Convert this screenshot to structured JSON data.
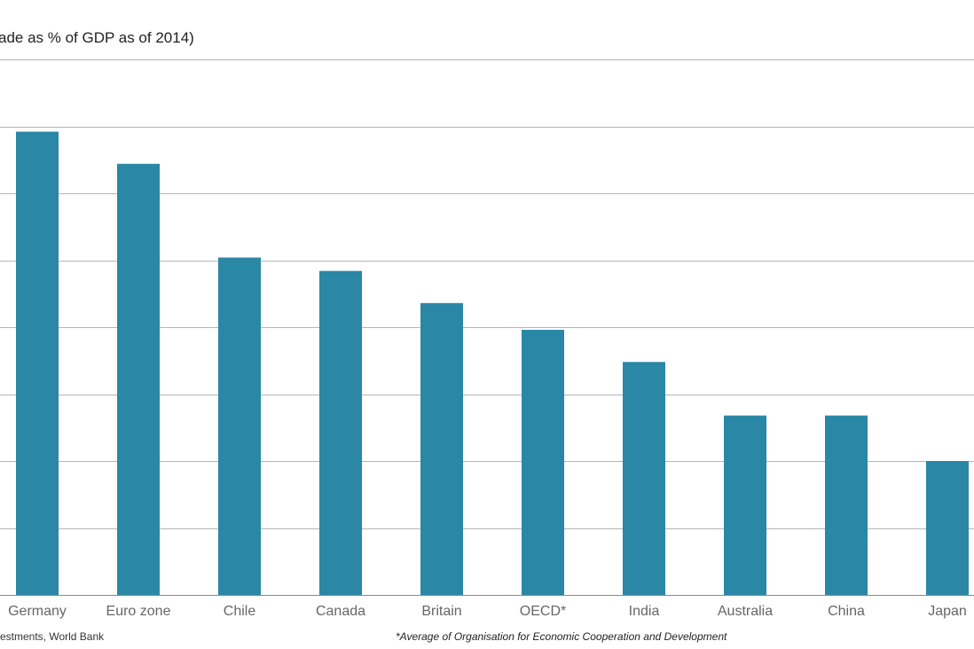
{
  "chart_data": {
    "type": "bar",
    "title": "ade as % of GDP as of 2014)",
    "categories": [
      "Germany",
      "Euro zone",
      "Chile",
      "Canada",
      "Britain",
      "OECD*",
      "India",
      "Australia",
      "China",
      "Japan"
    ],
    "values": [
      86.5,
      80.5,
      63.0,
      60.5,
      54.5,
      49.5,
      43.5,
      33.5,
      33.5,
      25.0
    ],
    "ylim": [
      0,
      100
    ],
    "grid_step": 12.5,
    "grid": true,
    "color": "#2a87a6",
    "source": "estments, World Bank",
    "footnote": "*Average of Organisation for Economic Cooperation and Development"
  }
}
